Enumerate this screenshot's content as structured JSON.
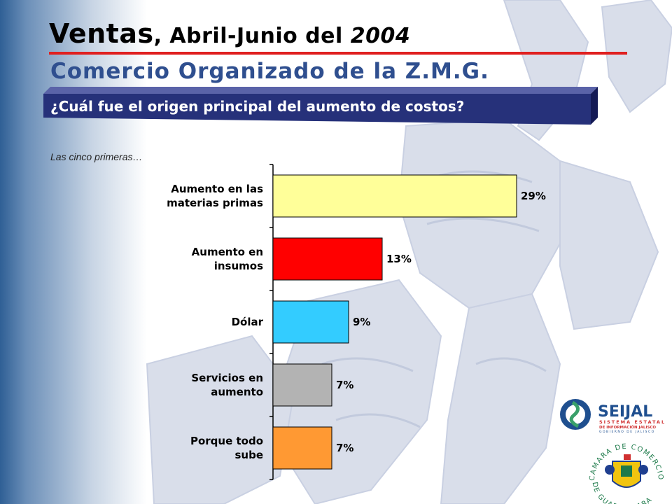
{
  "header": {
    "title_main": "Ventas",
    "title_sub": ", Abril-Junio del ",
    "title_year": "2004",
    "subtitle": "Comercio Organizado de la Z.M.G."
  },
  "question": "¿Cuál fue el origen principal del aumento de costos?",
  "note": "Las cinco primeras…",
  "colors": {
    "banner": "#26317a",
    "title_rule": "#e02020",
    "subtitle": "#2f4f8f"
  },
  "chart_data": {
    "type": "bar",
    "orientation": "horizontal",
    "categories": [
      [
        "Aumento en las",
        "materias primas"
      ],
      [
        "Aumento en",
        "insumos"
      ],
      [
        "Dólar"
      ],
      [
        "Servicios en",
        "aumento"
      ],
      [
        "Porque todo",
        "sube"
      ]
    ],
    "values": [
      29,
      13,
      9,
      7,
      7
    ],
    "value_labels": [
      "29%",
      "13%",
      "9%",
      "7%",
      "7%"
    ],
    "bar_colors": [
      "#ffff99",
      "#ff0000",
      "#33ccff",
      "#b3b3b3",
      "#ff9933"
    ],
    "xlim": [
      0,
      30
    ],
    "grid": false,
    "legend": "none"
  },
  "logos": {
    "seijal": {
      "name": "SEIJAL",
      "line1": "SISTEMA ESTATAL",
      "line2": "DE INFORMACIÓN JALISCO",
      "line3": "GOBIERNO DE JALISCO"
    },
    "camara": {
      "top_text": "CAMARA DE COMERCIO",
      "bottom_text": "DE GUADALAJARA"
    }
  }
}
